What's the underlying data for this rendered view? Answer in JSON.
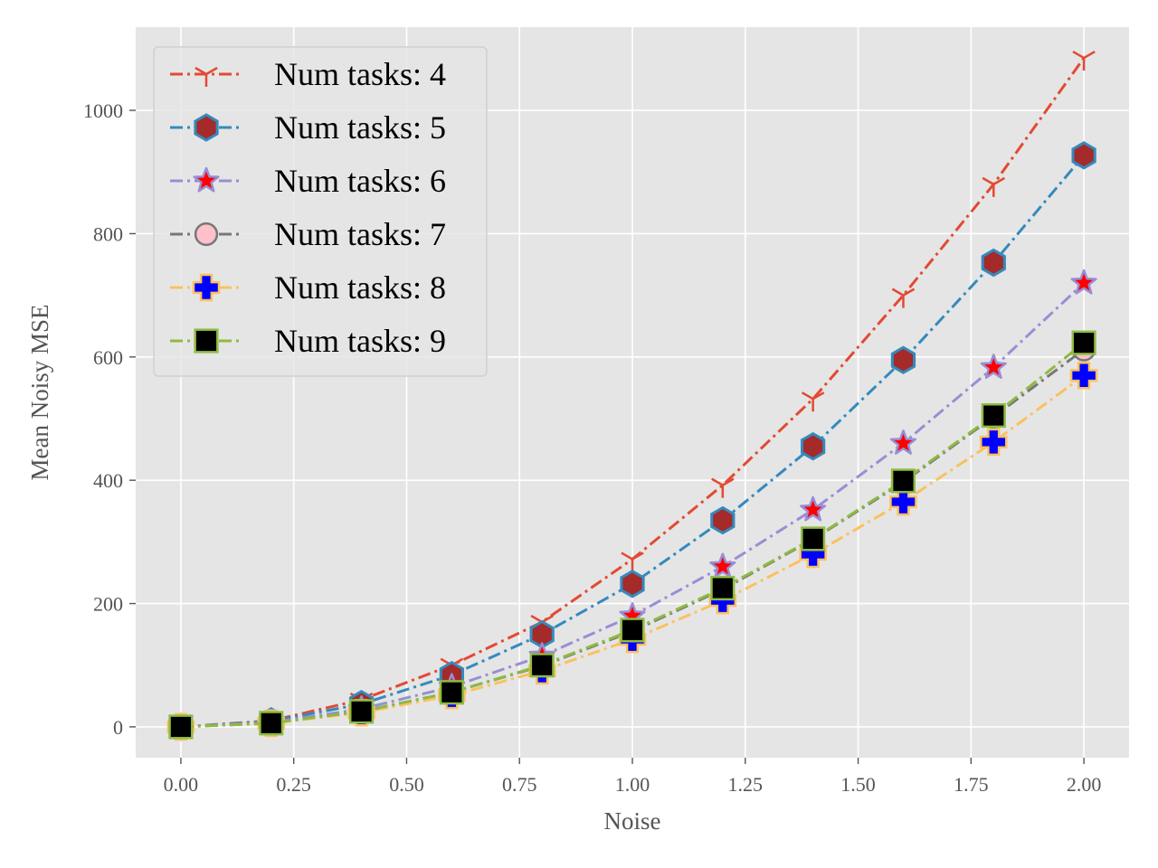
{
  "chart_data": {
    "type": "line",
    "title": "",
    "xlabel": "Noise",
    "ylabel": "Mean Noisy MSE",
    "xlim": [
      -0.1,
      2.1
    ],
    "ylim": [
      -50,
      1135
    ],
    "x_ticks": [
      "0.00",
      "0.25",
      "0.50",
      "0.75",
      "1.00",
      "1.25",
      "1.50",
      "1.75",
      "2.00"
    ],
    "y_ticks": [
      "0",
      "200",
      "400",
      "600",
      "800",
      "1000"
    ],
    "grid": true,
    "legend_position": "top-left",
    "x": [
      0.0,
      0.2,
      0.4,
      0.6,
      0.8,
      1.0,
      1.2,
      1.4,
      1.6,
      1.8,
      2.0
    ],
    "series": [
      {
        "name": "Num tasks: 4",
        "color": "#E24A33",
        "marker": "tri-down",
        "marker_face": "#E24A33",
        "marker_edge": "#E24A33",
        "values": [
          0,
          10,
          44,
          100,
          170,
          272,
          392,
          532,
          700,
          880,
          1085
        ]
      },
      {
        "name": "Num tasks: 5",
        "color": "#348ABD",
        "marker": "hexagon",
        "marker_face": "#A52A2A",
        "marker_edge": "#348ABD",
        "values": [
          0,
          9,
          37,
          84,
          150,
          232,
          335,
          455,
          595,
          753,
          927
        ]
      },
      {
        "name": "Num tasks: 6",
        "color": "#988ED5",
        "marker": "star",
        "marker_face": "#FF0000",
        "marker_edge": "#988ED5",
        "values": [
          0,
          7,
          29,
          65,
          115,
          180,
          260,
          352,
          460,
          583,
          720
        ]
      },
      {
        "name": "Num tasks: 7",
        "color": "#777777",
        "marker": "circle",
        "marker_face": "#FFC0CB",
        "marker_edge": "#777777",
        "values": [
          0,
          6,
          25,
          56,
          99,
          155,
          223,
          304,
          397,
          503,
          612
        ]
      },
      {
        "name": "Num tasks: 8",
        "color": "#FBC15E",
        "marker": "plus",
        "marker_face": "#0000FF",
        "marker_edge": "#FBC15E",
        "values": [
          0,
          6,
          23,
          51,
          91,
          142,
          205,
          280,
          365,
          462,
          570
        ]
      },
      {
        "name": "Num tasks: 9",
        "color": "#8EBA42",
        "marker": "square",
        "marker_face": "#000000",
        "marker_edge": "#8EBA42",
        "values": [
          0,
          6,
          25,
          56,
          100,
          157,
          225,
          305,
          399,
          505,
          623
        ]
      }
    ]
  }
}
